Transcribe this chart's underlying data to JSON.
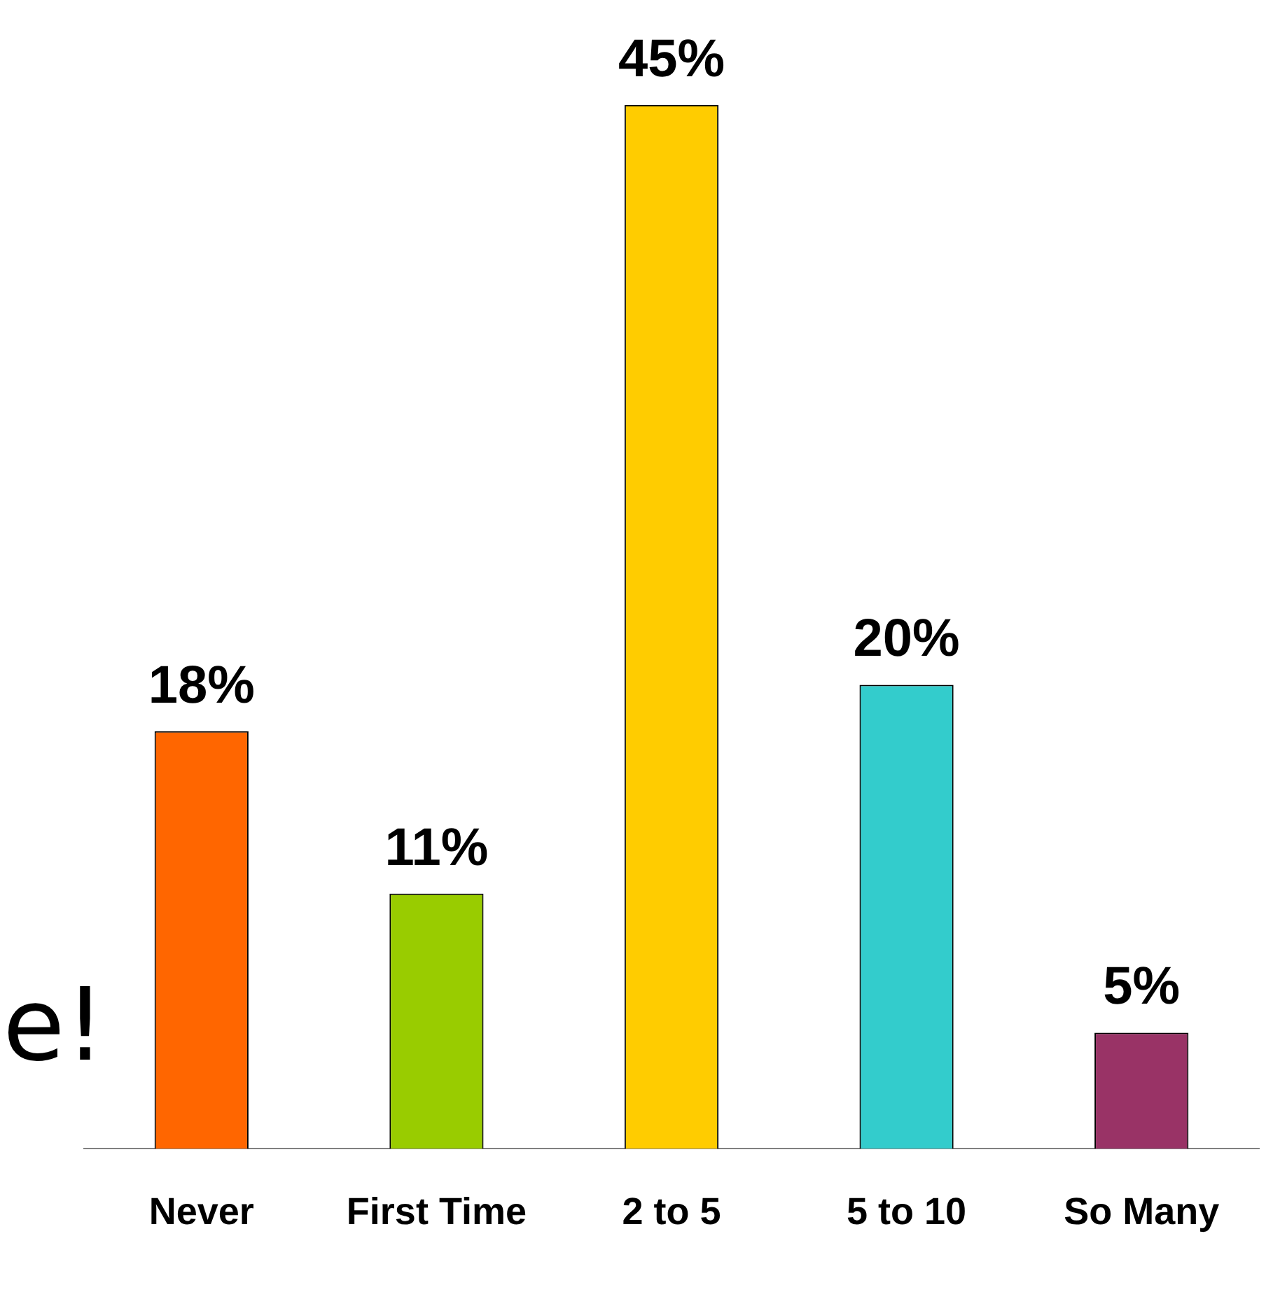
{
  "chart_data": {
    "type": "bar",
    "categories": [
      "Never",
      "First Time",
      "2 to 5",
      "5 to 10",
      "So Many"
    ],
    "values": [
      18,
      11,
      45,
      20,
      5
    ],
    "colors": [
      "#ff6600",
      "#99cc00",
      "#ffcc00",
      "#33cccc",
      "#993366"
    ],
    "value_labels": [
      "18%",
      "11%",
      "45%",
      "20%",
      "5%"
    ],
    "annotations": [
      "e!"
    ],
    "grid": false,
    "legend": false,
    "tick_labels": "x"
  }
}
